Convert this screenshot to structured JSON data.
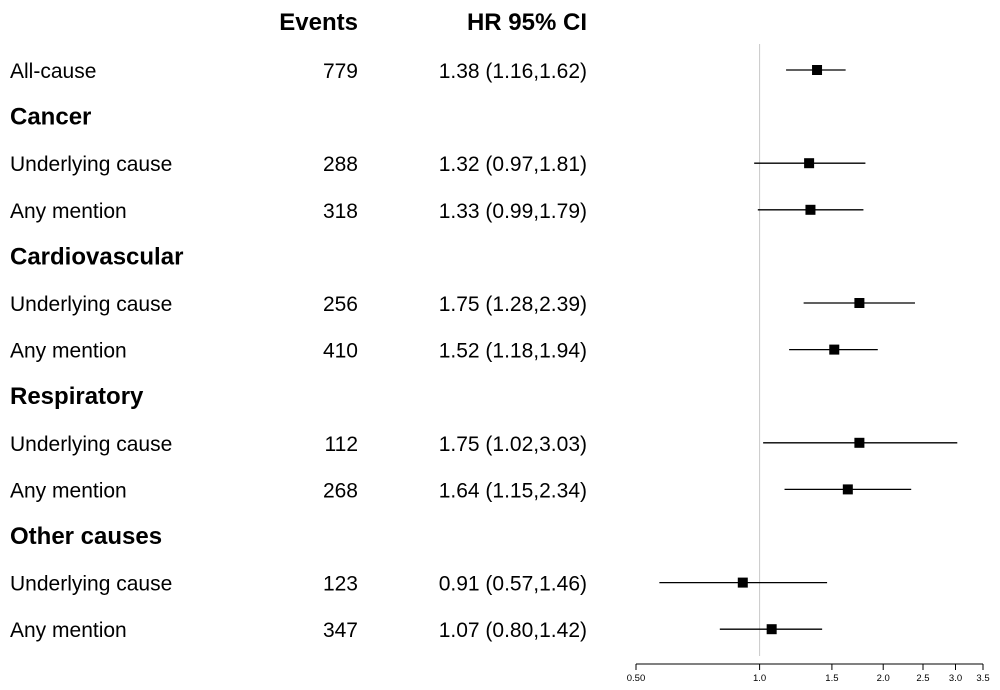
{
  "headers": {
    "events": "Events",
    "hr": "HR 95% CI"
  },
  "chart_data": {
    "type": "forest",
    "scale": "log",
    "reference_line": 1.0,
    "xlim": [
      0.5,
      3.5
    ],
    "x_ticks": [
      0.5,
      1.0,
      1.5,
      2.0,
      2.5,
      3.0,
      3.5
    ],
    "x_tick_labels": [
      "0.50",
      "1.0",
      "1.5",
      "2.0",
      "2.5",
      "3.0",
      "3.5"
    ],
    "rows": [
      {
        "kind": "item",
        "label": "All-cause",
        "events": "779",
        "hr_text": "1.38 (1.16,1.62)",
        "hr": 1.38,
        "lo": 1.16,
        "hi": 1.62
      },
      {
        "kind": "group",
        "label": "Cancer"
      },
      {
        "kind": "item",
        "label": "Underlying cause",
        "events": "288",
        "hr_text": "1.32 (0.97,1.81)",
        "hr": 1.32,
        "lo": 0.97,
        "hi": 1.81
      },
      {
        "kind": "item",
        "label": "Any mention",
        "events": "318",
        "hr_text": "1.33 (0.99,1.79)",
        "hr": 1.33,
        "lo": 0.99,
        "hi": 1.79
      },
      {
        "kind": "group",
        "label": "Cardiovascular"
      },
      {
        "kind": "item",
        "label": "Underlying cause",
        "events": "256",
        "hr_text": "1.75 (1.28,2.39)",
        "hr": 1.75,
        "lo": 1.28,
        "hi": 2.39
      },
      {
        "kind": "item",
        "label": "Any mention",
        "events": "410",
        "hr_text": "1.52 (1.18,1.94)",
        "hr": 1.52,
        "lo": 1.18,
        "hi": 1.94
      },
      {
        "kind": "group",
        "label": "Respiratory"
      },
      {
        "kind": "item",
        "label": "Underlying cause",
        "events": "112",
        "hr_text": "1.75 (1.02,3.03)",
        "hr": 1.75,
        "lo": 1.02,
        "hi": 3.03
      },
      {
        "kind": "item",
        "label": "Any mention",
        "events": "268",
        "hr_text": "1.64 (1.15,2.34)",
        "hr": 1.64,
        "lo": 1.15,
        "hi": 2.34
      },
      {
        "kind": "group",
        "label": "Other causes"
      },
      {
        "kind": "item",
        "label": "Underlying cause",
        "events": "123",
        "hr_text": "0.91 (0.57,1.46)",
        "hr": 0.91,
        "lo": 0.57,
        "hi": 1.46
      },
      {
        "kind": "item",
        "label": "Any mention",
        "events": "347",
        "hr_text": "1.07 (0.80,1.42)",
        "hr": 1.07,
        "lo": 0.8,
        "hi": 1.42
      }
    ],
    "colors": {
      "marker": "#000000",
      "reference_line": "#c8c8c8"
    }
  }
}
